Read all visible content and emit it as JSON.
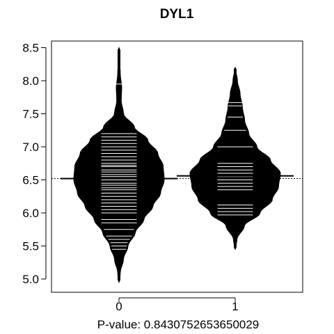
{
  "chart_data": {
    "type": "beanplot",
    "title": "DYL1",
    "xlabel": "P-value: 0.8430752653650029",
    "ylabel": "",
    "ylim": [
      4.8,
      8.6
    ],
    "y_ticks": [
      "5.0",
      "5.5",
      "6.0",
      "6.5",
      "7.0",
      "7.5",
      "8.0",
      "8.5"
    ],
    "y_tick_values": [
      5.0,
      5.5,
      6.0,
      6.5,
      7.0,
      7.5,
      8.0,
      8.5
    ],
    "categories": [
      "0",
      "1"
    ],
    "overall_mean": 6.52,
    "grid": false,
    "series": [
      {
        "category": "0",
        "mean": 6.52,
        "range": [
          4.95,
          8.5
        ],
        "density": [
          [
            4.95,
            0.0
          ],
          [
            5.1,
            0.03
          ],
          [
            5.3,
            0.1
          ],
          [
            5.5,
            0.2
          ],
          [
            5.7,
            0.36
          ],
          [
            5.9,
            0.55
          ],
          [
            6.1,
            0.75
          ],
          [
            6.3,
            0.92
          ],
          [
            6.5,
            1.0
          ],
          [
            6.7,
            0.98
          ],
          [
            6.9,
            0.86
          ],
          [
            7.1,
            0.64
          ],
          [
            7.3,
            0.34
          ],
          [
            7.5,
            0.1
          ],
          [
            7.7,
            0.05
          ],
          [
            7.9,
            0.06
          ],
          [
            8.1,
            0.03
          ],
          [
            8.3,
            0.01
          ],
          [
            8.5,
            0.0
          ]
        ],
        "observations": [
          5.45,
          5.5,
          5.55,
          5.6,
          5.65,
          5.75,
          5.85,
          5.9,
          6.0,
          6.05,
          6.1,
          6.15,
          6.2,
          6.25,
          6.3,
          6.35,
          6.38,
          6.42,
          6.45,
          6.5,
          6.55,
          6.58,
          6.62,
          6.65,
          6.7,
          6.72,
          6.75,
          6.8,
          6.85,
          6.9,
          6.95,
          7.0,
          7.05,
          7.1,
          7.15,
          7.2,
          7.95
        ]
      },
      {
        "category": "1",
        "mean": 6.56,
        "range": [
          5.45,
          8.2
        ],
        "density": [
          [
            5.45,
            0.0
          ],
          [
            5.6,
            0.04
          ],
          [
            5.8,
            0.2
          ],
          [
            6.0,
            0.55
          ],
          [
            6.2,
            0.82
          ],
          [
            6.4,
            0.96
          ],
          [
            6.6,
            1.0
          ],
          [
            6.8,
            0.78
          ],
          [
            7.0,
            0.48
          ],
          [
            7.2,
            0.3
          ],
          [
            7.4,
            0.21
          ],
          [
            7.6,
            0.16
          ],
          [
            7.8,
            0.11
          ],
          [
            8.0,
            0.05
          ],
          [
            8.2,
            0.0
          ]
        ],
        "observations": [
          5.97,
          6.02,
          6.07,
          6.12,
          6.35,
          6.4,
          6.45,
          6.5,
          6.55,
          6.6,
          6.65,
          6.7,
          6.75,
          7.0,
          7.25,
          7.45,
          7.62,
          7.67
        ]
      }
    ]
  }
}
